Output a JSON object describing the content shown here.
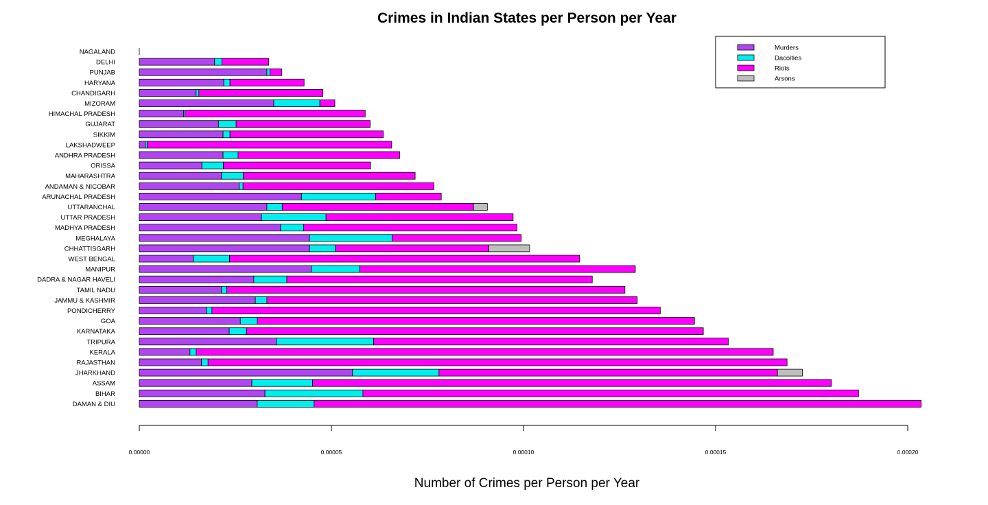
{
  "chart_data": {
    "type": "bar",
    "orientation": "horizontal",
    "stacked": true,
    "title": "Crimes in Indian States per Person per Year",
    "xlabel": "Number of Crimes per Person per Year",
    "xlim": [
      0,
      0.0002
    ],
    "xticks": [
      "0.00000",
      "0.00005",
      "0.00010",
      "0.00015",
      "0.00020"
    ],
    "xtick_values": [
      0,
      5e-05,
      0.0001,
      0.00015,
      0.0002
    ],
    "legend_position": "top-right",
    "grid": false,
    "categories": [
      "NAGALAND",
      "DELHI",
      "PUNJAB",
      "HARYANA",
      "CHANDIGARH",
      "MIZORAM",
      "HIMACHAL PRADESH",
      "GUJARAT",
      "SIKKIM",
      "LAKSHADWEEP",
      "ANDHRA PRADESH",
      "ORISSA",
      "MAHARASHTRA",
      "ANDAMAN & NICOBAR",
      "ARUNACHAL PRADESH",
      "UTTARANCHAL",
      "UTTAR PRADESH",
      "MADHYA PRADESH",
      "MEGHALAYA",
      "CHHATTISGARH",
      "WEST BENGAL",
      "MANIPUR",
      "DADRA & NAGAR HAVELI",
      "TAMIL NADU",
      "JAMMU & KASHMIR",
      "PONDICHERRY",
      "GOA",
      "KARNATAKA",
      "TRIPURA",
      "KERALA",
      "RAJASTHAN",
      "JHARKHAND",
      "ASSAM",
      "BIHAR",
      "DAMAN & DIU"
    ],
    "series": [
      {
        "name": "Murders",
        "color": "#b145f2",
        "values": [
          0,
          1.96e-05,
          3.32e-05,
          2.2e-05,
          1.48e-05,
          3.5e-05,
          1.15e-05,
          2.06e-05,
          2.18e-05,
          1.6e-06,
          2.18e-05,
          1.63e-05,
          2.14e-05,
          2.6e-05,
          4.22e-05,
          3.32e-05,
          3.18e-05,
          3.68e-05,
          4.43e-05,
          4.43e-05,
          1.41e-05,
          4.48e-05,
          2.98e-05,
          2.14e-05,
          3.02e-05,
          1.75e-05,
          2.63e-05,
          2.34e-05,
          3.57e-05,
          1.32e-05,
          1.62e-05,
          5.55e-05,
          2.93e-05,
          3.27e-05,
          3.07e-05
        ]
      },
      {
        "name": "Dacoities",
        "color": "#00eeee",
        "values": [
          0,
          1.9e-06,
          8e-07,
          1.6e-06,
          7e-07,
          1.2e-05,
          4e-07,
          4.6e-06,
          1.8e-06,
          5e-07,
          3.9e-06,
          5.6e-06,
          5.7e-06,
          1e-06,
          1.93e-05,
          4e-06,
          1.68e-05,
          6e-06,
          2.15e-05,
          6.8e-06,
          9.4e-06,
          1.26e-05,
          8.6e-06,
          1.4e-06,
          3e-06,
          1.4e-06,
          4.4e-06,
          4.5e-06,
          2.53e-05,
          1.6e-06,
          1.7e-06,
          2.25e-05,
          1.58e-05,
          2.55e-05,
          1.48e-05
        ]
      },
      {
        "name": "Riots",
        "color": "#ff00ff",
        "values": [
          0,
          1.22e-05,
          3.1e-06,
          1.93e-05,
          3.23e-05,
          3.9e-06,
          4.69e-05,
          3.49e-05,
          3.99e-05,
          6.36e-05,
          4.21e-05,
          3.83e-05,
          4.47e-05,
          4.97e-05,
          1.71e-05,
          4.98e-05,
          4.87e-05,
          5.55e-05,
          3.36e-05,
          3.99e-05,
          9.11e-05,
          7.17e-05,
          7.95e-05,
          0.0001036,
          9.64e-05,
          0.0001167,
          0.0001138,
          0.0001189,
          9.23e-05,
          0.0001502,
          0.0001507,
          8.81e-05,
          0.000135,
          0.000129,
          0.000158
        ]
      },
      {
        "name": "Arsons",
        "color": "#bebebe",
        "values": [
          0,
          0,
          0,
          0,
          0,
          0,
          0,
          0,
          0,
          0,
          0,
          0,
          0,
          0,
          0,
          3.6e-06,
          0,
          0,
          0,
          1.06e-05,
          0,
          0,
          0,
          0,
          0,
          0,
          0,
          0,
          0,
          0,
          0,
          6.5e-06,
          0,
          0,
          0
        ]
      }
    ]
  }
}
